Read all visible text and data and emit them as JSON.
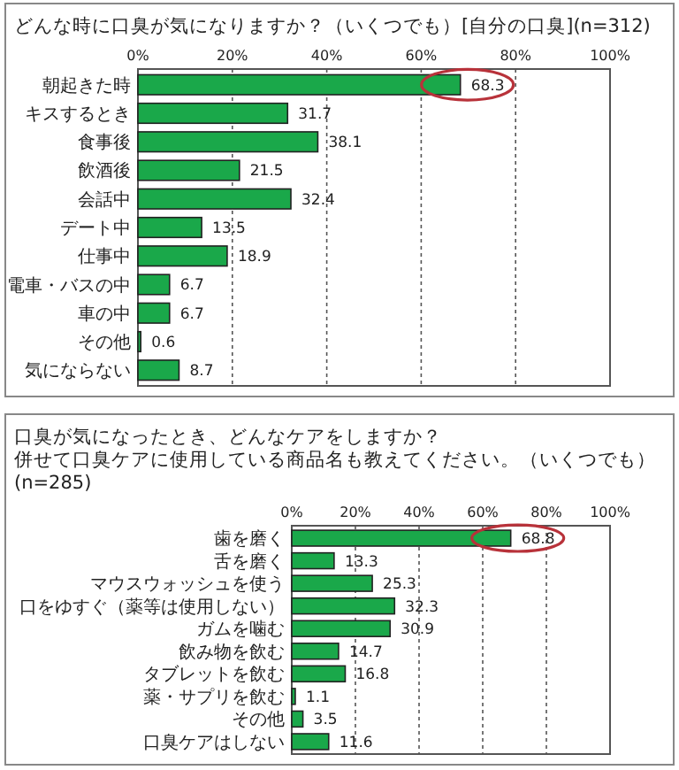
{
  "chart_data": [
    {
      "type": "bar",
      "orientation": "horizontal",
      "title": "どんな時に口臭が気になりますか？（いくつでも）[自分の口臭](n=312)",
      "categories": [
        "朝起きた時",
        "キスするとき",
        "食事後",
        "飲酒後",
        "会話中",
        "デート中",
        "仕事中",
        "電車・バスの中",
        "車の中",
        "その他",
        "気にならない"
      ],
      "values": [
        68.3,
        31.7,
        38.1,
        21.5,
        32.4,
        13.5,
        18.9,
        6.7,
        6.7,
        0.6,
        8.7
      ],
      "color": "#1aa84a",
      "xlim": [
        0,
        100
      ],
      "xticks": [
        {
          "value": 0,
          "label": "0%"
        },
        {
          "value": 20,
          "label": "20%"
        },
        {
          "value": 40,
          "label": "40%"
        },
        {
          "value": 60,
          "label": "60%"
        },
        {
          "value": 80,
          "label": "80%"
        },
        {
          "value": 100,
          "label": "100%"
        }
      ],
      "grid": "x",
      "data_labels": true
    },
    {
      "type": "bar",
      "orientation": "horizontal",
      "title": "口臭が気になったとき、どんなケアをしますか？",
      "subtitle": "併せて口臭ケアに使用している商品名も教えてください。（いくつでも）\n(n=285)",
      "categories": [
        "歯を磨く",
        "舌を磨く",
        "マウスウォッシュを使う",
        "口をゆすぐ（薬等は使用しない）",
        "ガムを噛む",
        "飲み物を飲む",
        "タブレットを飲む",
        "薬・サプリを飲む",
        "その他",
        "口臭ケアはしない"
      ],
      "values": [
        68.8,
        13.3,
        25.3,
        32.3,
        30.9,
        14.7,
        16.8,
        1.1,
        3.5,
        11.6
      ],
      "color": "#1aa84a",
      "xlim": [
        0,
        100
      ],
      "xticks": [
        {
          "value": 0,
          "label": "0%"
        },
        {
          "value": 20,
          "label": "20%"
        },
        {
          "value": 40,
          "label": "40%"
        },
        {
          "value": 60,
          "label": "60%"
        },
        {
          "value": 80,
          "label": "80%"
        },
        {
          "value": 100,
          "label": "100%"
        }
      ],
      "grid": "x",
      "data_labels": true
    }
  ]
}
